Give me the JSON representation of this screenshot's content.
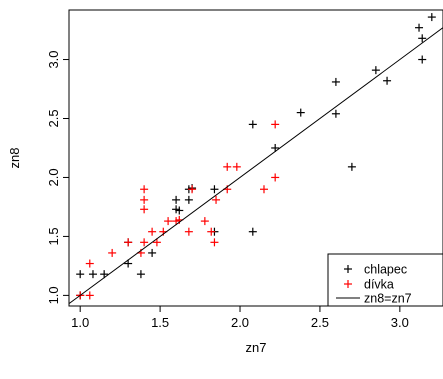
{
  "chart_data": {
    "type": "scatter",
    "xlabel": "zn7",
    "ylabel": "zn8",
    "xlim": [
      0.93,
      3.27
    ],
    "ylim": [
      0.91,
      3.42
    ],
    "xticks": [
      1.0,
      1.5,
      2.0,
      2.5,
      3.0
    ],
    "yticks": [
      1.0,
      1.5,
      2.0,
      2.5,
      3.0
    ],
    "xtick_labels": [
      "1.0",
      "1.5",
      "2.0",
      "2.5",
      "3.0"
    ],
    "ytick_labels": [
      "1.0",
      "1.5",
      "2.0",
      "2.5",
      "3.0"
    ],
    "grid": false,
    "legend_position": "bottom-right",
    "series": [
      {
        "name": "chlapec",
        "marker": "plus",
        "color": "#000000",
        "points": [
          [
            1.0,
            1.0
          ],
          [
            1.0,
            1.18
          ],
          [
            1.08,
            1.18
          ],
          [
            1.15,
            1.18
          ],
          [
            1.3,
            1.27
          ],
          [
            1.3,
            1.45
          ],
          [
            1.38,
            1.18
          ],
          [
            1.45,
            1.36
          ],
          [
            1.6,
            1.73
          ],
          [
            1.6,
            1.81
          ],
          [
            1.62,
            1.72
          ],
          [
            1.68,
            1.9
          ],
          [
            1.68,
            1.81
          ],
          [
            1.7,
            1.91
          ],
          [
            1.84,
            1.54
          ],
          [
            1.84,
            1.9
          ],
          [
            2.08,
            2.45
          ],
          [
            2.08,
            1.54
          ],
          [
            2.22,
            2.25
          ],
          [
            2.38,
            2.55
          ],
          [
            2.6,
            2.81
          ],
          [
            2.6,
            2.54
          ],
          [
            2.7,
            2.09
          ],
          [
            2.85,
            2.91
          ],
          [
            2.92,
            2.82
          ],
          [
            3.12,
            3.27
          ],
          [
            3.14,
            3.18
          ],
          [
            3.14,
            3.0
          ],
          [
            3.2,
            3.36
          ]
        ]
      },
      {
        "name": "dívka",
        "marker": "plus",
        "color": "#ff0000",
        "points": [
          [
            1.0,
            1.0
          ],
          [
            1.06,
            1.27
          ],
          [
            1.06,
            1.0
          ],
          [
            1.2,
            1.36
          ],
          [
            1.3,
            1.45
          ],
          [
            1.38,
            1.36
          ],
          [
            1.4,
            1.45
          ],
          [
            1.4,
            1.73
          ],
          [
            1.4,
            1.81
          ],
          [
            1.4,
            1.9
          ],
          [
            1.45,
            1.54
          ],
          [
            1.48,
            1.45
          ],
          [
            1.52,
            1.54
          ],
          [
            1.55,
            1.63
          ],
          [
            1.6,
            1.63
          ],
          [
            1.62,
            1.64
          ],
          [
            1.68,
            1.54
          ],
          [
            1.7,
            1.9
          ],
          [
            1.78,
            1.63
          ],
          [
            1.82,
            1.54
          ],
          [
            1.84,
            1.45
          ],
          [
            1.85,
            1.81
          ],
          [
            1.92,
            2.09
          ],
          [
            1.92,
            1.9
          ],
          [
            1.98,
            2.09
          ],
          [
            2.15,
            1.9
          ],
          [
            2.22,
            2.45
          ],
          [
            2.22,
            2.0
          ]
        ]
      }
    ],
    "fit_line": {
      "name": "zn8=zn7",
      "intercept": 0.0,
      "slope": 1.0,
      "color": "#000000"
    }
  }
}
